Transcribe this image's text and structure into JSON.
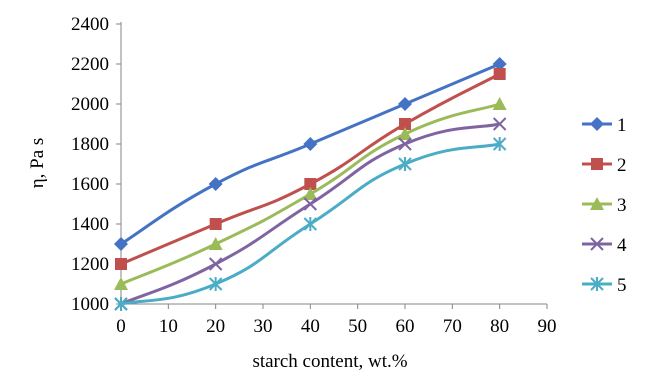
{
  "chart_data": {
    "type": "line",
    "title": "",
    "xlabel": "starch content, wt.%",
    "ylabel": "η, Pa s",
    "xlim": [
      0,
      90
    ],
    "ylim": [
      1000,
      2400
    ],
    "x_ticks": [
      0,
      10,
      20,
      30,
      40,
      50,
      60,
      70,
      80,
      90
    ],
    "y_ticks": [
      1000,
      1200,
      1400,
      1600,
      1800,
      2000,
      2200,
      2400
    ],
    "grid": false,
    "legend_position": "right",
    "x": [
      0,
      20,
      40,
      60,
      80
    ],
    "series": [
      {
        "name": "1",
        "values": [
          1300,
          1600,
          1800,
          2000,
          2200
        ],
        "color": "#4472C4",
        "marker": "diamond"
      },
      {
        "name": "2",
        "values": [
          1200,
          1400,
          1600,
          1900,
          2150
        ],
        "color": "#C0504D",
        "marker": "square"
      },
      {
        "name": "3",
        "values": [
          1100,
          1300,
          1550,
          1850,
          2000
        ],
        "color": "#9BBB59",
        "marker": "triangle"
      },
      {
        "name": "4",
        "values": [
          1000,
          1200,
          1500,
          1800,
          1900
        ],
        "color": "#8064A2",
        "marker": "x"
      },
      {
        "name": "5",
        "values": [
          1000,
          1100,
          1400,
          1700,
          1800
        ],
        "color": "#4BACC6",
        "marker": "star"
      }
    ]
  }
}
